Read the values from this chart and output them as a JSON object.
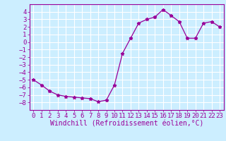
{
  "x": [
    0,
    1,
    2,
    3,
    4,
    5,
    6,
    7,
    8,
    9,
    10,
    11,
    12,
    13,
    14,
    15,
    16,
    17,
    18,
    19,
    20,
    21,
    22,
    23
  ],
  "y": [
    -5.0,
    -5.7,
    -6.5,
    -7.0,
    -7.2,
    -7.3,
    -7.4,
    -7.5,
    -7.9,
    -7.7,
    -5.7,
    -1.5,
    0.5,
    2.5,
    3.0,
    3.3,
    4.3,
    3.5,
    2.7,
    0.5,
    0.5,
    2.5,
    2.7,
    2.0
  ],
  "line_color": "#990099",
  "marker": "*",
  "bg_color": "#cceeff",
  "grid_color": "#ffffff",
  "tick_color": "#990099",
  "label_color": "#990099",
  "xlabel": "Windchill (Refroidissement éolien,°C)",
  "ylim": [
    -9,
    5
  ],
  "xlim": [
    -0.5,
    23.5
  ],
  "yticks": [
    -8,
    -7,
    -6,
    -5,
    -4,
    -3,
    -2,
    -1,
    0,
    1,
    2,
    3,
    4
  ],
  "xticks": [
    0,
    1,
    2,
    3,
    4,
    5,
    6,
    7,
    8,
    9,
    10,
    11,
    12,
    13,
    14,
    15,
    16,
    17,
    18,
    19,
    20,
    21,
    22,
    23
  ],
  "font_size": 6.5,
  "label_fontsize": 7
}
